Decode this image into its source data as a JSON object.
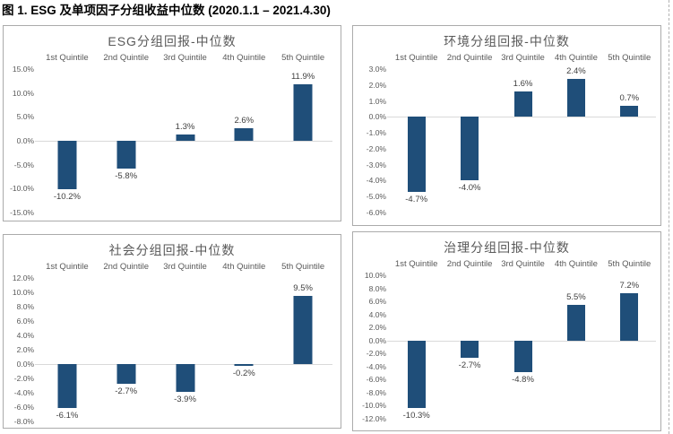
{
  "caption": "图 1. ESG 及单项因子分组收益中位数 (2020.1.1 – 2021.4.30)",
  "accent_color": "#1f4e79",
  "zero_line_color": "#d9d9d9",
  "panel_border_color": "#ababab",
  "chart_data": [
    {
      "type": "bar",
      "title": "ESG分组回报-中位数",
      "categories": [
        "1st Quintile",
        "2nd Quintile",
        "3rd Quintile",
        "4th Quintile",
        "5th Quintile"
      ],
      "values": [
        -10.2,
        -5.8,
        1.3,
        2.6,
        11.9
      ],
      "data_labels": [
        "-10.2%",
        "-5.8%",
        "1.3%",
        "2.6%",
        "11.9%"
      ],
      "ylim": [
        -15,
        15
      ],
      "ytick_values": [
        15,
        10,
        5,
        0,
        -5,
        -10,
        -15
      ],
      "ytick_labels": [
        "15.0%",
        "10.0%",
        "5.0%",
        "0.0%",
        "-5.0%",
        "-10.0%",
        "-15.0%"
      ],
      "bar_color": "#1f4e79",
      "grid": false,
      "legend": "none",
      "category_label_position": "top"
    },
    {
      "type": "bar",
      "title": "环境分组回报-中位数",
      "categories": [
        "1st Quintile",
        "2nd Quintile",
        "3rd Quintile",
        "4th Quintile",
        "5th Quintile"
      ],
      "values": [
        -4.7,
        -4.0,
        1.6,
        2.4,
        0.7
      ],
      "data_labels": [
        "-4.7%",
        "-4.0%",
        "1.6%",
        "2.4%",
        "0.7%"
      ],
      "ylim": [
        -6,
        3
      ],
      "ytick_values": [
        3,
        2,
        1,
        0,
        -1,
        -2,
        -3,
        -4,
        -5,
        -6
      ],
      "ytick_labels": [
        "3.0%",
        "2.0%",
        "1.0%",
        "0.0%",
        "-1.0%",
        "-2.0%",
        "-3.0%",
        "-4.0%",
        "-5.0%",
        "-6.0%"
      ],
      "bar_color": "#1f4e79",
      "grid": false,
      "legend": "none",
      "category_label_position": "top"
    },
    {
      "type": "bar",
      "title": "社会分组回报-中位数",
      "categories": [
        "1st Quintile",
        "2nd Quintile",
        "3rd Quintile",
        "4th Quintile",
        "5th Quintile"
      ],
      "values": [
        -6.1,
        -2.7,
        -3.9,
        -0.2,
        9.5
      ],
      "data_labels": [
        "-6.1%",
        "-2.7%",
        "-3.9%",
        "-0.2%",
        "9.5%"
      ],
      "ylim": [
        -8,
        12
      ],
      "ytick_values": [
        12,
        10,
        8,
        6,
        4,
        2,
        0,
        -2,
        -4,
        -6,
        -8
      ],
      "ytick_labels": [
        "12.0%",
        "10.0%",
        "8.0%",
        "6.0%",
        "4.0%",
        "2.0%",
        "0.0%",
        "-2.0%",
        "-4.0%",
        "-6.0%",
        "-8.0%"
      ],
      "bar_color": "#1f4e79",
      "grid": false,
      "legend": "none",
      "category_label_position": "top"
    },
    {
      "type": "bar",
      "title": "治理分组回报-中位数",
      "categories": [
        "1st Quintile",
        "2nd Quintile",
        "3rd Quintile",
        "4th Quintile",
        "5th Quintile"
      ],
      "values": [
        -10.3,
        -2.7,
        -4.8,
        5.5,
        7.2
      ],
      "data_labels": [
        "-10.3%",
        "-2.7%",
        "-4.8%",
        "5.5%",
        "7.2%"
      ],
      "ylim": [
        -12,
        10
      ],
      "ytick_values": [
        10,
        8,
        6,
        4,
        2,
        0,
        -2,
        -4,
        -6,
        -8,
        -10,
        -12
      ],
      "ytick_labels": [
        "10.0%",
        "8.0%",
        "6.0%",
        "4.0%",
        "2.0%",
        "0.0%",
        "-2.0%",
        "-4.0%",
        "-6.0%",
        "-8.0%",
        "-10.0%",
        "-12.0%"
      ],
      "bar_color": "#1f4e79",
      "grid": false,
      "legend": "none",
      "category_label_position": "top"
    }
  ]
}
